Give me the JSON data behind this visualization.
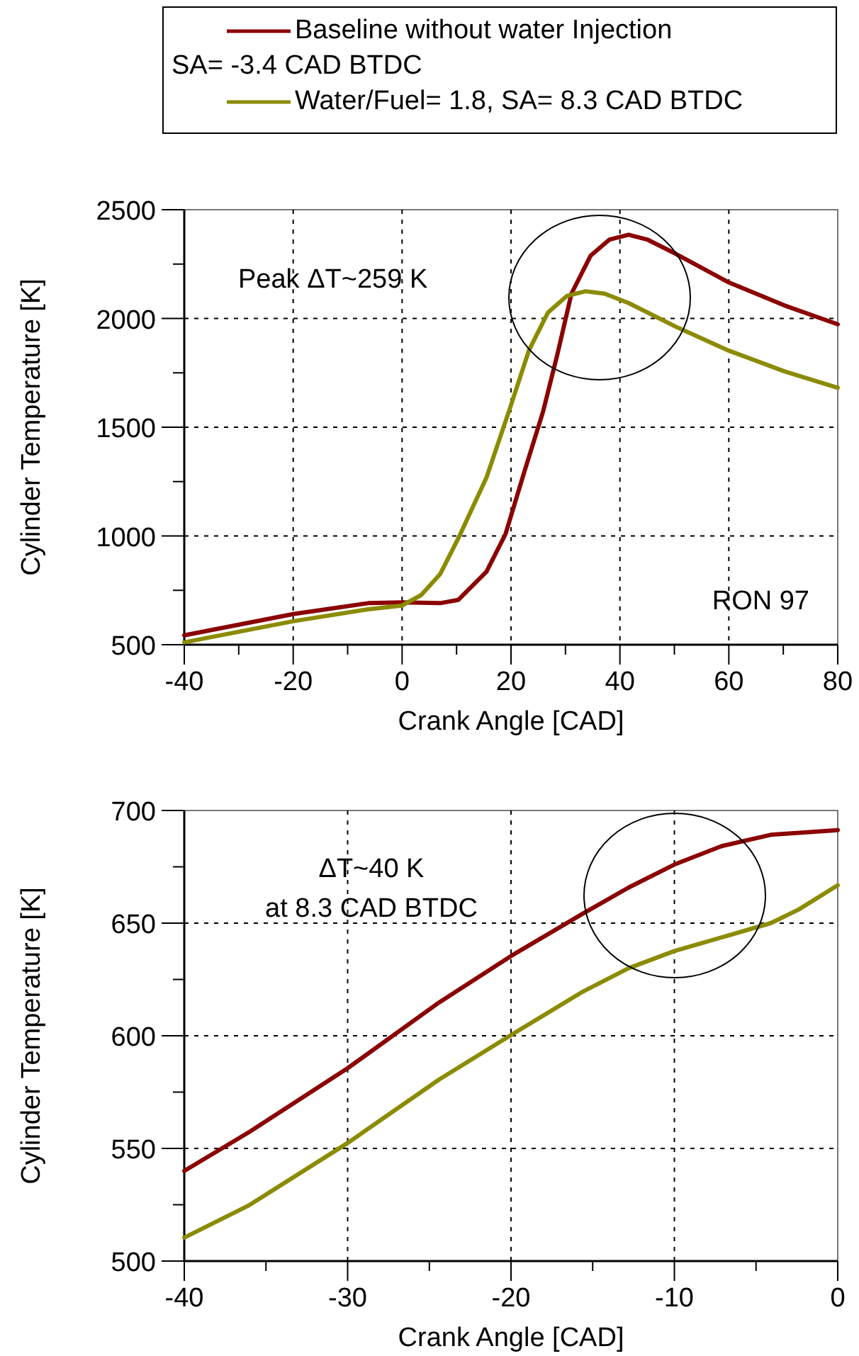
{
  "chart_data": [
    {
      "type": "line",
      "xlabel": "Crank Angle [CAD]",
      "ylabel": "Cylinder Temperature [K]",
      "xlim": [
        -40,
        80
      ],
      "ylim": [
        500,
        2500
      ],
      "xticks": [
        -40,
        {
          "value": -30,
          "label": null
        },
        -20,
        {
          "value": -10,
          "label": null
        },
        0,
        {
          "value": 10,
          "label": null
        },
        20,
        {
          "value": 30,
          "label": null
        },
        40,
        {
          "value": 50,
          "label": null
        },
        60,
        {
          "value": 70,
          "label": null
        },
        80
      ],
      "yticks": [
        500,
        {
          "value": 750,
          "label": null
        },
        1000,
        {
          "value": 1250,
          "label": null
        },
        1500,
        {
          "value": 1750,
          "label": null
        },
        2000,
        {
          "value": 2250,
          "label": null
        },
        2500
      ],
      "grid": true,
      "legend": "top",
      "line_style": "solid",
      "annotations": [
        "Peak ΔT~259 K",
        "RON 97"
      ],
      "series": [
        {
          "name": "Baseline without water Injection\nSA= -3.4 CAD BTDC",
          "color": "#8b0000",
          "x": [
            -40,
            -20,
            -6.2,
            0,
            7,
            10.3,
            15.5,
            19,
            22.4,
            25.9,
            28.5,
            31.1,
            34.6,
            38.1,
            41.6,
            45,
            50.2,
            59.8,
            70.2,
            80
          ],
          "values": [
            543,
            641,
            691,
            695,
            691,
            706,
            836,
            1009,
            1291,
            1573,
            1833,
            2114,
            2288,
            2363,
            2385,
            2363,
            2298,
            2168,
            2060,
            1973
          ]
        },
        {
          "name": "Water/Fuel= 1.8, SA= 8.3 CAD BTDC",
          "color": "#8b8b00",
          "x": [
            -40,
            -20,
            -6.2,
            0,
            3.5,
            7,
            10.3,
            15.5,
            19.9,
            23.3,
            26.8,
            30.3,
            33.7,
            37.2,
            41.6,
            50.2,
            59.8,
            70.2,
            80
          ],
          "values": [
            511,
            608,
            663,
            680,
            728,
            825,
            988,
            1269,
            1594,
            1854,
            2028,
            2104,
            2125,
            2114,
            2071,
            1963,
            1854,
            1757,
            1681
          ]
        }
      ]
    },
    {
      "type": "line",
      "xlabel": "Crank Angle [CAD]",
      "ylabel": "Cylinder Temperature [K]",
      "xlim": [
        -40,
        0
      ],
      "ylim": [
        500,
        700
      ],
      "xticks": [
        -40,
        {
          "value": -35,
          "label": null
        },
        -30,
        {
          "value": -25,
          "label": null
        },
        -20,
        {
          "value": -15,
          "label": null
        },
        -10,
        {
          "value": -5,
          "label": null
        },
        0
      ],
      "yticks": [
        500,
        {
          "value": 525,
          "label": null
        },
        550,
        {
          "value": 575,
          "label": null
        },
        600,
        {
          "value": 625,
          "label": null
        },
        650,
        {
          "value": 675,
          "label": null
        },
        700
      ],
      "grid": true,
      "line_style": "solid",
      "annotations": [
        "ΔT~40 K\nat 8.3 CAD BTDC"
      ],
      "series": [
        {
          "color": "#8b0000",
          "x": [
            -40,
            -36,
            -30,
            -24.4,
            -20,
            -15.7,
            -12.8,
            -10,
            -7.1,
            -4.1,
            0
          ],
          "values": [
            540,
            557.4,
            585.6,
            614.8,
            635.4,
            653.8,
            665.8,
            676,
            684.2,
            689.2,
            691.3
          ]
        },
        {
          "color": "#8b8b00",
          "x": [
            -40,
            -36,
            -30,
            -24.4,
            -20,
            -15.7,
            -12.8,
            -10,
            -7.1,
            -4.1,
            -2.4,
            0
          ],
          "values": [
            510.4,
            524.9,
            552.4,
            580.6,
            600.3,
            619.2,
            630,
            637.6,
            643.7,
            650,
            656,
            666.8
          ]
        }
      ]
    }
  ]
}
